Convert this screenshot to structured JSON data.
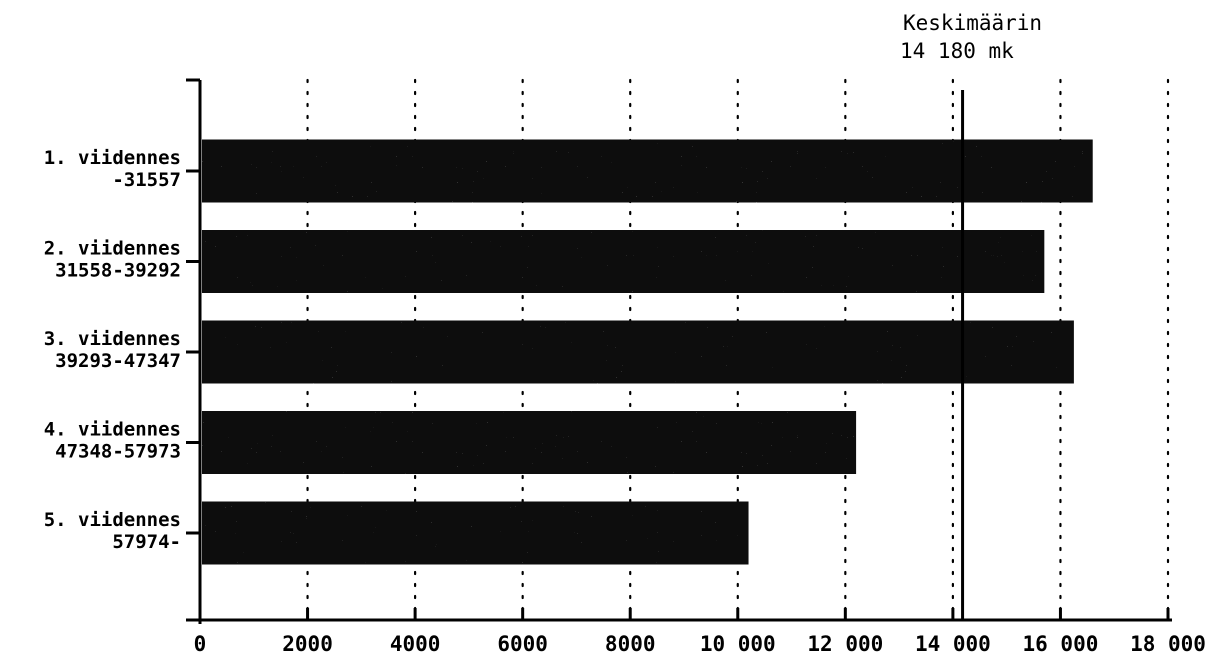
{
  "chart_data": {
    "type": "bar",
    "orientation": "horizontal",
    "title": "",
    "xlabel": "",
    "ylabel": "",
    "categories": [
      {
        "line1": "1. viidennes",
        "line2": "-31557"
      },
      {
        "line1": "2. viidennes",
        "line2": "31558-39292"
      },
      {
        "line1": "3. viidennes",
        "line2": "39293-47347"
      },
      {
        "line1": "4. viidennes",
        "line2": "47348-57973"
      },
      {
        "line1": "5. viidennes",
        "line2": "57974-"
      }
    ],
    "values": [
      16600,
      15700,
      16250,
      12200,
      10200
    ],
    "xlim": [
      0,
      18000
    ],
    "xticks": [
      0,
      2000,
      4000,
      6000,
      8000,
      10000,
      12000,
      14000,
      16000,
      18000
    ],
    "xtick_labels": [
      "0",
      "2000",
      "4000",
      "6000",
      "8000",
      "10 000",
      "12 000",
      "14 000",
      "16 000",
      "18 000"
    ],
    "grid": "vertical-dotted",
    "reference_line": {
      "value": 14180,
      "label_line1": "Keskimäärin",
      "label_line2": "14 180 mk"
    },
    "colors": {
      "bar": "#0a0a0a",
      "axis": "#000000",
      "grid": "#000000",
      "background": "#ffffff"
    }
  }
}
